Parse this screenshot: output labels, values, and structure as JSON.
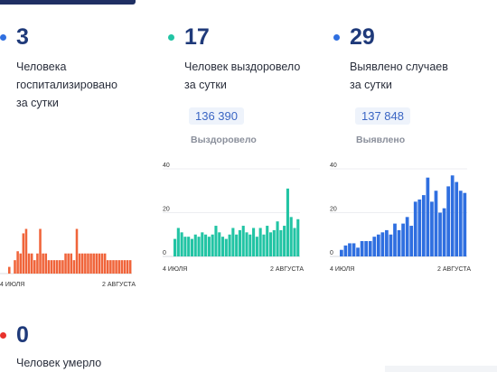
{
  "stats": [
    {
      "value": "3",
      "label": "Человека\nгоспитализировано\nза сутки",
      "color": "#2f6fe0"
    },
    {
      "value": "17",
      "label": "Человек выздоровело\nза сутки",
      "color": "#22c4a4",
      "total": "136 390",
      "total_label": "Выздоровело"
    },
    {
      "value": "29",
      "label": "Выявлено случаев\nза сутки",
      "color": "#2f6fe0",
      "total": "137 848",
      "total_label": "Выявлено"
    },
    {
      "value": "0",
      "label": "Человек умерло",
      "color": "#e8322c"
    }
  ],
  "chart_data": [
    {
      "type": "bar",
      "color": "#f0643a",
      "ylim": [
        0,
        40
      ],
      "x_labels": [
        "4 ИЮЛЯ",
        "2 АВГУСТА"
      ],
      "y_ticks": [],
      "values": [
        3,
        0,
        6,
        10,
        9,
        18,
        20,
        9,
        9,
        6,
        9,
        20,
        9,
        9,
        6,
        6,
        6,
        6,
        6,
        6,
        9,
        9,
        9,
        6,
        20,
        9,
        9,
        9,
        9,
        9,
        9,
        9,
        9,
        9,
        9,
        6,
        6,
        6,
        6,
        6,
        6,
        6,
        6,
        6
      ]
    },
    {
      "type": "bar",
      "color": "#22c4a4",
      "ylim": [
        0,
        40
      ],
      "x_labels": [
        "4 ИЮЛЯ",
        "2 АВГУСТА"
      ],
      "y_ticks": [
        40,
        20,
        0
      ],
      "values": [
        8,
        13,
        11,
        9,
        9,
        8,
        10,
        9,
        11,
        10,
        9,
        10,
        14,
        11,
        9,
        8,
        10,
        13,
        10,
        12,
        14,
        11,
        10,
        13,
        9,
        13,
        10,
        14,
        11,
        12,
        16,
        12,
        14,
        31,
        18,
        13,
        17
      ]
    },
    {
      "type": "bar",
      "color": "#2f6fe0",
      "ylim": [
        0,
        40
      ],
      "x_labels": [
        "4 ИЮЛЯ",
        "2 АВГУСТА"
      ],
      "y_ticks": [
        40,
        20,
        0
      ],
      "values": [
        3,
        5,
        6,
        6,
        4,
        7,
        7,
        7,
        9,
        10,
        11,
        12,
        10,
        15,
        12,
        15,
        18,
        14,
        25,
        26,
        28,
        36,
        25,
        30,
        20,
        22,
        32,
        37,
        34,
        30,
        29
      ]
    }
  ]
}
